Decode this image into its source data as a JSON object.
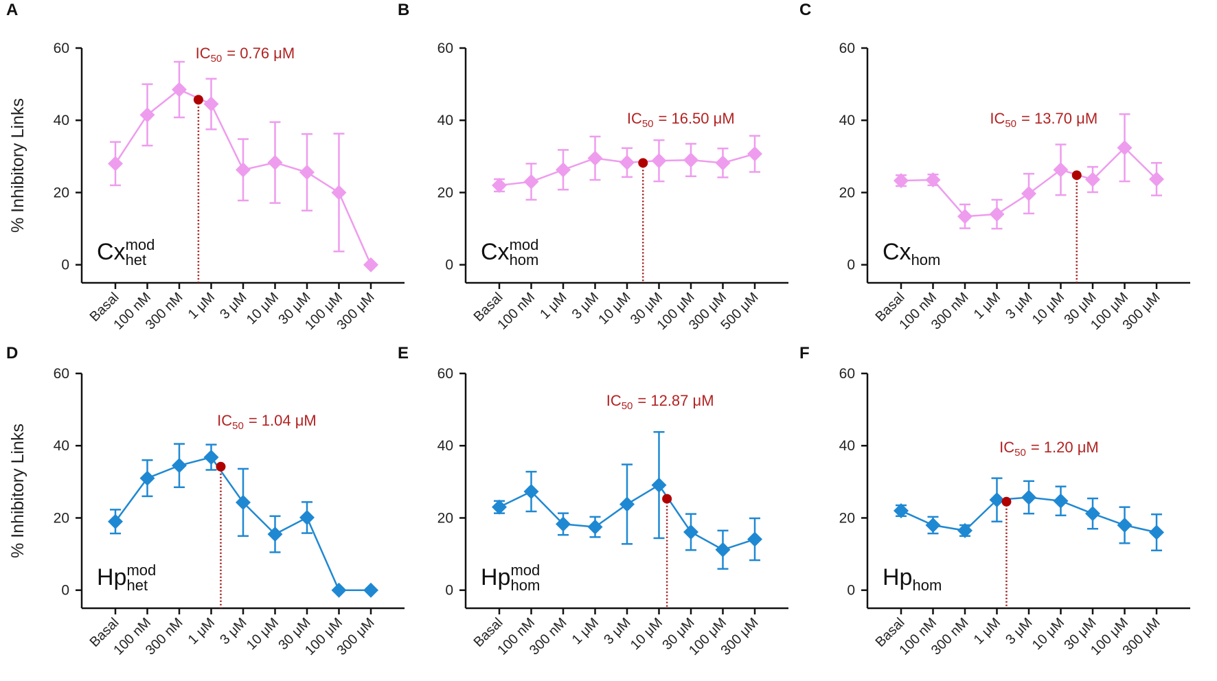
{
  "chart_data": [
    {
      "type": "line",
      "panel": "A",
      "ylabel": "% Inhibitory Links",
      "color": "#ee9cee",
      "label": {
        "base": "Cx",
        "sub": "het",
        "sup": "mod"
      },
      "annotation": {
        "prefix": "IC",
        "sub": "50",
        "text": "= 0.76 μM"
      },
      "categories": [
        "Basal",
        "100 nM",
        "300 nM",
        "1 μM",
        "3 μM",
        "10 μM",
        "30 μM",
        "100 μM",
        "300 μM"
      ],
      "values": [
        28,
        41.5,
        48.5,
        44.5,
        26.3,
        28.3,
        25.6,
        20,
        0
      ],
      "errors": [
        6,
        8.5,
        7.7,
        7,
        8.5,
        11.2,
        10.6,
        16.3,
        0
      ],
      "ic50_point": {
        "x": 2.6,
        "y": 45.7
      },
      "ylim": [
        -5,
        60
      ],
      "yticks": [
        0,
        20,
        40,
        60
      ]
    },
    {
      "type": "line",
      "panel": "B",
      "color": "#ee9cee",
      "label": {
        "base": "Cx",
        "sub": "hom",
        "sup": "mod"
      },
      "annotation": {
        "prefix": "IC",
        "sub": "50",
        "text": "= 16.50 μM"
      },
      "categories": [
        "Basal",
        "100 nM",
        "1 μM",
        "3 μM",
        "10 μM",
        "30 μM",
        "100 μM",
        "300 μM",
        "500 μM"
      ],
      "values": [
        22,
        23,
        26.3,
        29.5,
        28.3,
        28.8,
        29,
        28.2,
        30.7
      ],
      "errors": [
        1.7,
        5,
        5.5,
        6,
        4,
        5.7,
        4.5,
        4,
        5
      ],
      "ic50_point": {
        "x": 4.5,
        "y": 28.2
      },
      "ylim": [
        -5,
        60
      ],
      "yticks": [
        0,
        20,
        40,
        60
      ]
    },
    {
      "type": "line",
      "panel": "C",
      "color": "#ee9cee",
      "label": {
        "base": "Cx",
        "sub": "hom"
      },
      "annotation": {
        "prefix": "IC",
        "sub": "50",
        "text": "= 13.70 μM"
      },
      "categories": [
        "Basal",
        "100 nM",
        "300 nM",
        "1 μM",
        "3 μM",
        "10 μM",
        "30 μM",
        "100 μM",
        "300 μM"
      ],
      "values": [
        23.3,
        23.5,
        13.4,
        14,
        19.7,
        26.3,
        23.6,
        32.4,
        23.7
      ],
      "errors": [
        1.5,
        1.5,
        3.3,
        4,
        5.5,
        7,
        3.5,
        9.3,
        4.5
      ],
      "ic50_point": {
        "x": 5.5,
        "y": 24.8
      },
      "ylim": [
        -5,
        60
      ],
      "yticks": [
        0,
        20,
        40,
        60
      ]
    },
    {
      "type": "line",
      "panel": "D",
      "ylabel": "% Inhibitory Links",
      "color": "#1f88d2",
      "label": {
        "base": "Hp",
        "sub": "het",
        "sup": "mod"
      },
      "annotation": {
        "prefix": "IC",
        "sub": "50",
        "text": "= 1.04 μM"
      },
      "categories": [
        "Basal",
        "100 nM",
        "300 nM",
        "1 μM",
        "3 μM",
        "10 μM",
        "30 μM",
        "100 μM",
        "300 μM"
      ],
      "values": [
        19,
        31,
        34.5,
        36.8,
        24.3,
        15.5,
        20.1,
        0,
        0
      ],
      "errors": [
        3.3,
        5,
        6,
        3.5,
        9.3,
        5,
        4.3,
        0,
        0
      ],
      "ic50_point": {
        "x": 3.3,
        "y": 34.2
      },
      "ylim": [
        -5,
        60
      ],
      "yticks": [
        0,
        20,
        40,
        60
      ]
    },
    {
      "type": "line",
      "panel": "E",
      "color": "#1f88d2",
      "label": {
        "base": "Hp",
        "sub": "hom",
        "sup": "mod"
      },
      "annotation": {
        "prefix": "IC",
        "sub": "50",
        "text": "= 12.87 μM"
      },
      "categories": [
        "Basal",
        "100 nM",
        "300 nM",
        "1 μM",
        "3 μM",
        "10 μM",
        "30 μM",
        "100 μM",
        "300 μM"
      ],
      "values": [
        23,
        27.3,
        18.3,
        17.5,
        23.8,
        29.1,
        16.1,
        11.2,
        14.1
      ],
      "errors": [
        1.7,
        5.5,
        3,
        2.8,
        11,
        14.7,
        5,
        5.3,
        5.8
      ],
      "ic50_point": {
        "x": 5.25,
        "y": 25.3
      },
      "ylim": [
        -5,
        60
      ],
      "yticks": [
        0,
        20,
        40,
        60
      ]
    },
    {
      "type": "line",
      "panel": "F",
      "color": "#1f88d2",
      "label": {
        "base": "Hp",
        "sub": "hom"
      },
      "annotation": {
        "prefix": "IC",
        "sub": "50",
        "text": "= 1.20 μM"
      },
      "categories": [
        "Basal",
        "100 nM",
        "300 nM",
        "1 μM",
        "3 μM",
        "10 μM",
        "30 μM",
        "100 μM",
        "300 μM"
      ],
      "values": [
        22,
        18,
        16.5,
        25,
        25.7,
        24.7,
        21.2,
        18,
        16
      ],
      "errors": [
        1.5,
        2.3,
        1.5,
        6,
        4.5,
        4,
        4.2,
        5,
        5
      ],
      "ic50_point": {
        "x": 3.3,
        "y": 24.5
      },
      "ylim": [
        -5,
        60
      ],
      "yticks": [
        0,
        20,
        40,
        60
      ]
    }
  ]
}
